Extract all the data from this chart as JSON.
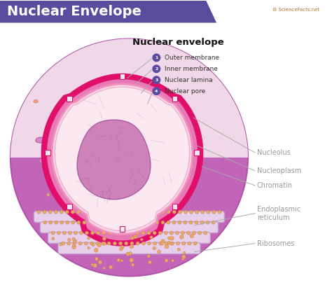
{
  "title_banner": "Nuclear Envelope",
  "title_banner_color": "#5b4b9e",
  "title_banner_text_color": "#ffffff",
  "subtitle": "Nuclear envelope",
  "bg_color": "#ffffff",
  "label_color": "#999999",
  "numbered_label_bg": "#5b4b9e",
  "labels_left": [
    {
      "num": "1",
      "text": "Outer membrane"
    },
    {
      "num": "2",
      "text": "Inner membrane"
    },
    {
      "num": "3",
      "text": "Nuclear lamina"
    },
    {
      "num": "4",
      "text": "Nuclear pore"
    }
  ],
  "labels_right": [
    "Nucleolus",
    "Nucleoplasm",
    "Chromatin",
    "Endoplasmic\nreticulum",
    "Ribosomes"
  ],
  "outer_cell_color": "#c264b8",
  "outer_cell_edge": "#b055a8",
  "cytoplasm_spot_fill": "#d888c8",
  "cytoplasm_spot_edge": "#b060a0",
  "cytoplasm_dot_fill": "#e8a080",
  "cytoplasm_dot_edge": "#c07060",
  "nuc_outer_fill": "#e878b8",
  "nuc_outer_edge": "#e0106a",
  "nuc_inner_fill": "#f8d0e8",
  "nuc_inner_edge": "#f090b8",
  "nuc_lamina_fill": "#fce8f0",
  "nucleolus_fill": "#c870b0",
  "nucleolus_edge": "#a050a0",
  "pore_fill": "#f0e8f0",
  "pore_edge": "#d0a0c0",
  "er_tube_fill": "#e8d0ec",
  "er_tube_edge": "#c0a0cc",
  "er_bg_fill": "#f8e8f4",
  "ribosome_fill": "#e8a868",
  "ribosome_edge": "#c08050",
  "bottom_cell_fill": "#f0d8e8",
  "sciencefacts_color": "#b87030",
  "line_color": "#aaaaaa"
}
